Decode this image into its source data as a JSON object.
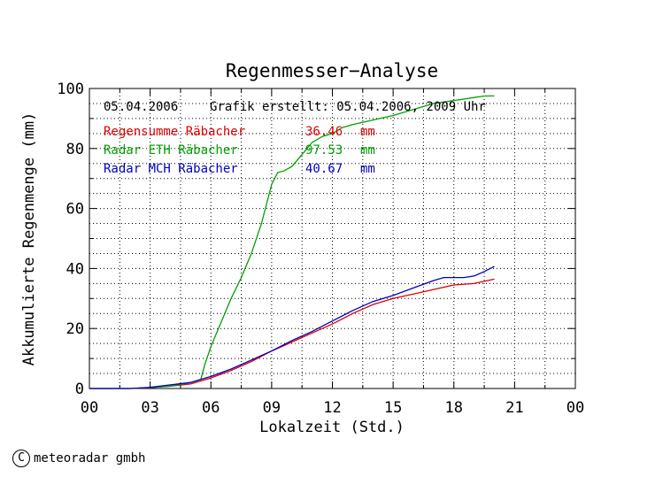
{
  "chart_data": {
    "type": "line",
    "title": "Regenmesser−Analyse",
    "xlabel": "Lokalzeit (Std.)",
    "ylabel": "Akkumulierte Regenmenge (mm)",
    "xlim": [
      0,
      24
    ],
    "ylim": [
      0,
      100
    ],
    "x_ticks": [
      "00",
      "03",
      "06",
      "09",
      "12",
      "15",
      "18",
      "21",
      "00"
    ],
    "y_ticks": [
      "0",
      "20",
      "40",
      "60",
      "80",
      "100"
    ],
    "grid": true,
    "date_label": "05.04.2006",
    "created_label": "Grafik erstellt: 05.04.2006, 2009 Uhr",
    "series": [
      {
        "name": "Regensumme Räbacher",
        "value_label": "36.46",
        "unit": "mm",
        "color": "#e00000",
        "x": [
          0,
          2,
          3,
          4,
          5,
          5.5,
          6,
          7,
          8,
          9,
          10,
          11,
          12,
          13,
          14,
          15,
          16,
          17,
          18,
          19,
          20
        ],
        "y": [
          0,
          0,
          0.3,
          0.8,
          1.5,
          2.5,
          3.5,
          6,
          9,
          12.5,
          15.5,
          18.5,
          21.5,
          25,
          28,
          30,
          31.5,
          33,
          34.5,
          35,
          36.46
        ]
      },
      {
        "name": "Radar ETH Räbacher",
        "value_label": "97.53",
        "unit": "mm",
        "color": "#00a000",
        "x": [
          0,
          2,
          3,
          4,
          5,
          5.5,
          5.7,
          6,
          6.5,
          7,
          7.5,
          8,
          8.5,
          9,
          9.3,
          9.6,
          10,
          10.5,
          11,
          11.5,
          12,
          12.5,
          13,
          14,
          15,
          16,
          17,
          18,
          19,
          19.5,
          20
        ],
        "y": [
          0,
          0,
          0.3,
          0.8,
          2,
          3,
          8,
          14,
          22,
          30,
          37,
          45,
          55,
          68,
          72,
          72.5,
          74,
          78,
          82,
          84,
          85,
          87,
          88,
          89.5,
          91,
          93,
          95,
          96,
          97,
          97.5,
          97.53
        ]
      },
      {
        "name": "Radar MCH Räbacher",
        "value_label": "40.67",
        "unit": "mm",
        "color": "#0000c0",
        "x": [
          0,
          2,
          3,
          4,
          5,
          5.5,
          6,
          7,
          8,
          9,
          10,
          11,
          12,
          13,
          14,
          15,
          16,
          17,
          17.5,
          18,
          18.5,
          19,
          19.5,
          20
        ],
        "y": [
          0,
          0,
          0.4,
          1.2,
          2,
          3,
          4,
          6.5,
          9.5,
          12.5,
          16,
          19,
          22.5,
          26,
          29,
          31,
          33.5,
          36,
          37,
          37,
          37,
          37.5,
          39,
          40.67
        ]
      }
    ]
  },
  "footer": {
    "copyright_symbol": "C",
    "copyright_text": "meteoradar gmbh"
  }
}
